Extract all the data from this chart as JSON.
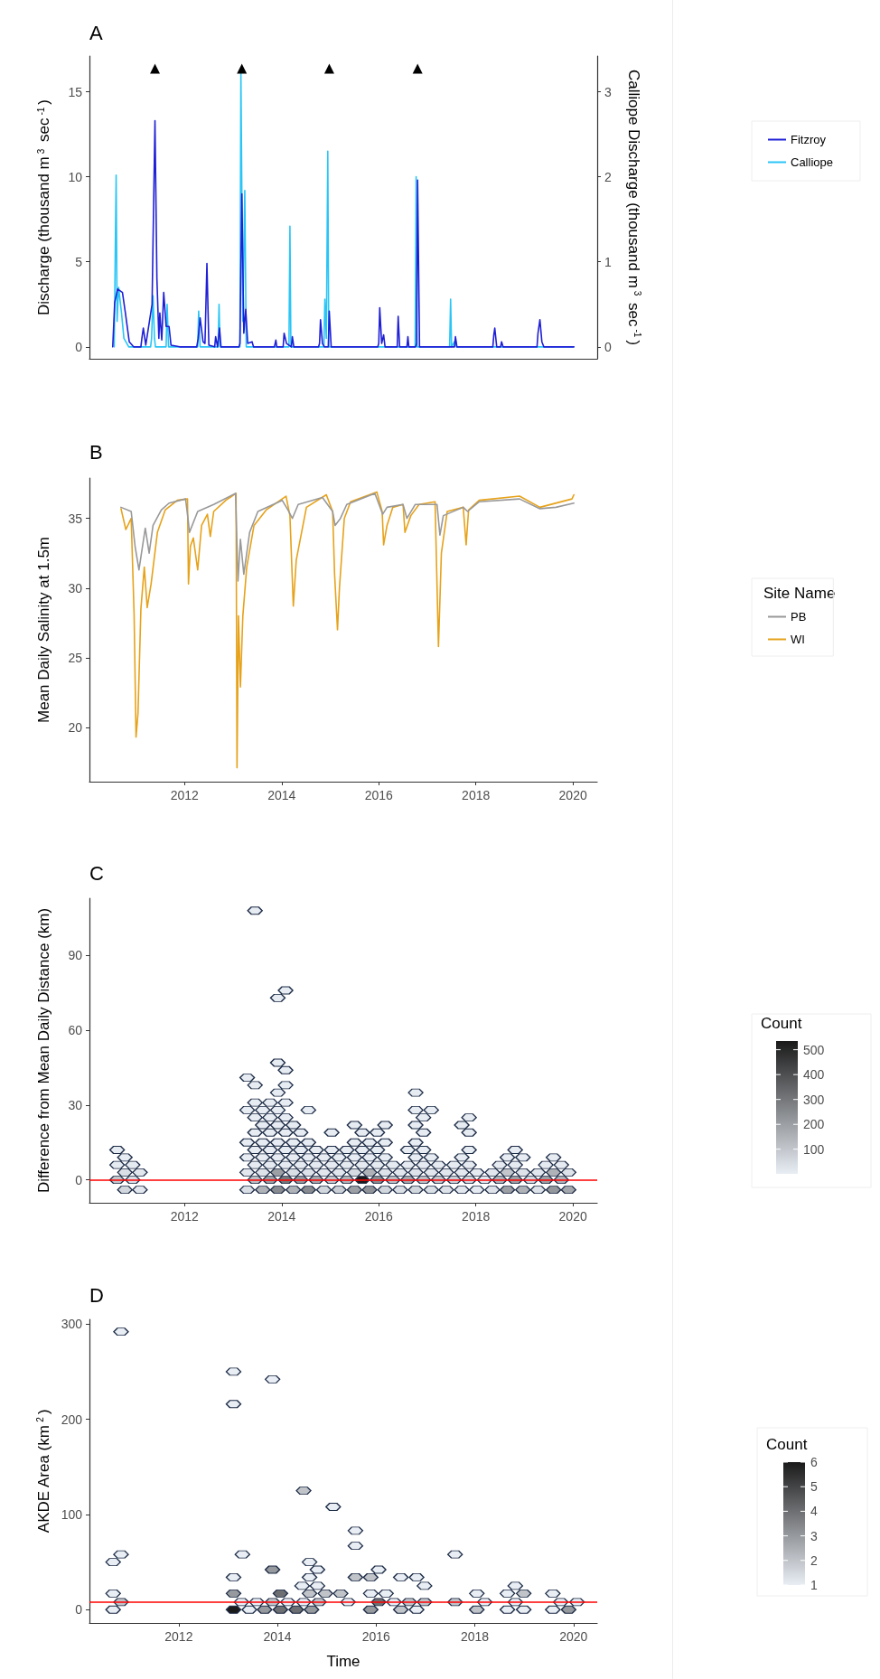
{
  "chart_data": [
    {
      "type": "line",
      "title": "A",
      "ylabel": "Discharge (thousand m$^{3}$ sec$^{-1}$)",
      "y2label": "Calliope Discharge (thousand m$^{3}$ sec$^{-1}$)",
      "legend": "right",
      "tick_labels": "y",
      "xlim": [
        2010.04,
        2020.5
      ],
      "ylim": [
        -0.7,
        17.1
      ],
      "yticks": [
        0,
        5,
        10,
        15
      ],
      "y2lim": [
        -0.14,
        3.42
      ],
      "y2ticks": [
        0,
        1,
        2,
        3
      ],
      "series": [
        {
          "name": "Fitzroy",
          "color": "#1f1fd6",
          "x": [
            2010.52,
            2010.56,
            2010.62,
            2010.72,
            2010.78,
            2010.86,
            2010.95,
            2011.1,
            2011.12,
            2011.15,
            2011.2,
            2011.33,
            2011.35,
            2011.39,
            2011.43,
            2011.47,
            2011.49,
            2011.53,
            2011.57,
            2011.62,
            2011.68,
            2011.72,
            2011.9,
            2012.25,
            2012.28,
            2012.32,
            2012.38,
            2012.42,
            2012.46,
            2012.5,
            2012.62,
            2012.64,
            2012.68,
            2012.72,
            2012.75,
            2013.12,
            2013.14,
            2013.18,
            2013.22,
            2013.26,
            2013.3,
            2013.39,
            2013.42,
            2013.85,
            2013.88,
            2013.9,
            2014.03,
            2014.05,
            2014.1,
            2014.2,
            2014.22,
            2014.25,
            2014.76,
            2014.78,
            2014.8,
            2014.84,
            2014.88,
            2014.96,
            2014.98,
            2015.02,
            2015.98,
            2016.0,
            2016.02,
            2016.06,
            2016.1,
            2016.13,
            2016.38,
            2016.4,
            2016.43,
            2016.58,
            2016.6,
            2016.62,
            2016.76,
            2016.78,
            2016.8,
            2016.84,
            2017.56,
            2017.58,
            2017.61,
            2018.35,
            2018.37,
            2018.39,
            2018.43,
            2018.51,
            2018.53,
            2018.56,
            2019.26,
            2019.28,
            2019.32,
            2019.36,
            2019.4,
            2020.02
          ],
          "values": [
            0,
            2.6,
            3.4,
            3.2,
            2.0,
            0.3,
            0,
            0,
            0.5,
            1.1,
            0.1,
            2.5,
            6.2,
            13.3,
            4,
            0.5,
            2.0,
            0.4,
            3.2,
            1.2,
            1.2,
            0.1,
            0,
            0,
            0.5,
            1.7,
            0.3,
            0.2,
            4.9,
            0.1,
            0,
            0.6,
            0,
            1.1,
            0,
            0,
            0.2,
            9.0,
            0.8,
            2.2,
            0.2,
            0.3,
            0,
            0,
            0.4,
            0,
            0,
            0.8,
            0.2,
            0,
            0.6,
            0,
            0,
            0.2,
            1.6,
            0.2,
            0,
            0,
            2.1,
            0,
            0,
            0.2,
            2.3,
            0.2,
            0.7,
            0,
            0,
            1.8,
            0,
            0,
            0.6,
            0,
            0,
            0.2,
            9.8,
            0,
            0,
            0.6,
            0,
            0,
            0.7,
            1.1,
            0,
            0,
            0.3,
            0,
            0,
            0.8,
            1.6,
            0.3,
            0,
            0
          ]
        },
        {
          "name": "Calliope",
          "color": "#29c5f6",
          "axis": "y2",
          "x": [
            2010.55,
            2010.59,
            2010.61,
            2010.64,
            2010.7,
            2010.75,
            2010.85,
            2011.3,
            2011.32,
            2011.35,
            2011.38,
            2011.4,
            2011.62,
            2011.64,
            2011.67,
            2012.27,
            2012.29,
            2012.32,
            2012.69,
            2012.71,
            2012.73,
            2013.14,
            2013.16,
            2013.2,
            2013.24,
            2013.27,
            2014.15,
            2014.17,
            2014.19,
            2014.87,
            2014.89,
            2014.92,
            2014.95,
            2014.97,
            2016.75,
            2016.77,
            2016.79,
            2017.46,
            2017.48,
            2017.5,
            2017.58,
            2017.6,
            2020.02
          ],
          "values": [
            0,
            2.02,
            0.3,
            0.7,
            0.4,
            0.1,
            0,
            0,
            0.1,
            0.6,
            0.1,
            0,
            0,
            0.5,
            0,
            0,
            0.42,
            0,
            0,
            0.5,
            0,
            0,
            3.24,
            0.3,
            1.84,
            0,
            0,
            1.42,
            0,
            0,
            0.56,
            0.1,
            2.3,
            0,
            0,
            2.0,
            0,
            0,
            0.56,
            0,
            0.08,
            0,
            0
          ]
        },
        {
          "type": "scatter",
          "marker": "triangle",
          "color": "#000000",
          "x": [
            2011.39,
            2013.18,
            2014.98,
            2016.8
          ],
          "values": [
            16.35,
            16.35,
            16.35,
            16.35
          ]
        }
      ]
    },
    {
      "type": "line",
      "title": "B",
      "ylabel": "Mean Daily Salinity at 1.5m",
      "legend": "right",
      "legend_title": "Site Name",
      "xlim": [
        2010.04,
        2020.5
      ],
      "xticks": [
        2012,
        2014,
        2016,
        2018,
        2020
      ],
      "ylim": [
        16.1,
        37.9
      ],
      "yticks": [
        20,
        25,
        30,
        35
      ],
      "series": [
        {
          "name": "PB",
          "color": "#999999",
          "x": [
            2010.69,
            2010.9,
            2010.98,
            2011.06,
            2011.19,
            2011.27,
            2011.35,
            2011.52,
            2011.68,
            2012.02,
            2012.07,
            2012.1,
            2012.27,
            2012.6,
            2013.05,
            2013.1,
            2013.15,
            2013.22,
            2013.34,
            2013.51,
            2014.01,
            2014.13,
            2014.22,
            2014.34,
            2014.84,
            2015.05,
            2015.1,
            2015.21,
            2015.34,
            2015.92,
            2016.08,
            2016.17,
            2016.5,
            2016.58,
            2016.75,
            2017.2,
            2017.26,
            2017.33,
            2017.74,
            2017.83,
            2018.07,
            2018.9,
            2019.32,
            2019.65,
            2020.02
          ],
          "values": [
            35.8,
            35.5,
            33,
            31.3,
            34.3,
            32.5,
            34.5,
            35.6,
            36.1,
            36.4,
            35,
            34,
            35.5,
            36,
            36.8,
            30.5,
            33.5,
            31,
            34,
            35.5,
            36.3,
            35.6,
            35,
            36,
            36.5,
            35.5,
            34.5,
            35,
            36,
            36.8,
            35.3,
            35.8,
            36,
            35,
            36,
            36,
            33.8,
            35.2,
            35.8,
            35.5,
            36.2,
            36.4,
            35.7,
            35.8,
            36.1
          ]
        },
        {
          "name": "WI",
          "color": "#e6a21a",
          "x": [
            2010.69,
            2010.79,
            2010.9,
            2010.96,
            2011.0,
            2011.04,
            2011.1,
            2011.17,
            2011.23,
            2011.31,
            2011.44,
            2011.6,
            2011.85,
            2012.06,
            2012.08,
            2012.12,
            2012.18,
            2012.27,
            2012.35,
            2012.47,
            2012.53,
            2012.6,
            2012.85,
            2013.06,
            2013.08,
            2013.11,
            2013.15,
            2013.2,
            2013.28,
            2013.43,
            2013.68,
            2014.09,
            2014.17,
            2014.24,
            2014.3,
            2014.51,
            2014.92,
            2015.05,
            2015.09,
            2015.15,
            2015.19,
            2015.29,
            2015.42,
            2015.96,
            2016.07,
            2016.1,
            2016.17,
            2016.29,
            2016.5,
            2016.54,
            2016.66,
            2016.83,
            2017.16,
            2017.23,
            2017.29,
            2017.41,
            2017.74,
            2017.8,
            2017.85,
            2018.07,
            2018.9,
            2019.32,
            2019.98,
            2020.02
          ],
          "values": [
            35.7,
            34.2,
            35,
            28.1,
            19.3,
            21,
            28.5,
            31.5,
            28.6,
            30.3,
            34,
            35.6,
            36.3,
            36.4,
            30.3,
            33,
            33.6,
            31.3,
            34.5,
            35.3,
            33.7,
            35.5,
            36.3,
            36.8,
            17.1,
            28,
            22.9,
            28,
            31.5,
            34.5,
            35.6,
            36.6,
            35.2,
            28.7,
            32,
            35.8,
            36.7,
            35.5,
            31,
            27,
            30,
            35,
            36.2,
            36.9,
            35.5,
            33.1,
            34.5,
            35.8,
            36,
            34,
            35.2,
            36,
            36.2,
            25.8,
            32.5,
            35.5,
            35.8,
            33.1,
            35.6,
            36.3,
            36.6,
            35.8,
            36.4,
            36.7
          ]
        }
      ]
    },
    {
      "type": "scatter",
      "title": "C",
      "ylabel": "Difference from Mean Daily Distance (km)",
      "clabel": "Count",
      "clim": [
        1,
        535
      ],
      "cticks": [
        100,
        200,
        300,
        400,
        500
      ],
      "xlim": [
        2010.04,
        2020.5
      ],
      "xticks": [
        2012,
        2014,
        2016,
        2018,
        2020
      ],
      "ylim": [
        -9.2,
        113
      ],
      "yticks": [
        0,
        30,
        60,
        90
      ],
      "ref_lines": [
        {
          "axis": "y",
          "value": 0,
          "color": "#ff0000"
        }
      ],
      "x": [
        2010.77,
        2011.08,
        2013.29,
        2013.61,
        2013.92,
        2014.24,
        2014.55,
        2014.87,
        2015.18,
        2015.5,
        2015.81,
        2016.13,
        2016.44,
        2016.76,
        2017.08,
        2017.39,
        2017.71,
        2018.02,
        2018.34,
        2018.65,
        2018.97,
        2019.28,
        2019.6,
        2019.91,
        2010.61,
        2010.93,
        2013.45,
        2013.76,
        2014.08,
        2014.39,
        2014.71,
        2015.03,
        2015.34,
        2015.66,
        2015.97,
        2016.29,
        2016.6,
        2016.92,
        2017.23,
        2017.55,
        2017.86,
        2018.18,
        2018.49,
        2018.81,
        2019.13,
        2019.44,
        2019.76,
        2010.77,
        2011.08,
        2013.29,
        2013.61,
        2013.92,
        2014.24,
        2014.55,
        2014.87,
        2015.18,
        2015.5,
        2015.81,
        2016.13,
        2016.44,
        2016.76,
        2017.08,
        2017.39,
        2017.71,
        2018.02,
        2018.34,
        2018.65,
        2018.97,
        2019.28,
        2019.6,
        2019.91,
        2010.61,
        2010.93,
        2013.45,
        2013.76,
        2014.08,
        2014.39,
        2014.71,
        2015.03,
        2015.34,
        2015.66,
        2015.97,
        2016.29,
        2016.6,
        2016.92,
        2017.23,
        2017.55,
        2017.86,
        2018.49,
        2018.81,
        2019.44,
        2019.76,
        2010.77,
        2013.29,
        2013.61,
        2013.92,
        2014.24,
        2014.55,
        2014.87,
        2015.18,
        2015.5,
        2015.81,
        2016.13,
        2016.76,
        2017.08,
        2017.71,
        2018.65,
        2018.97,
        2019.6,
        2010.61,
        2013.45,
        2013.76,
        2014.08,
        2014.39,
        2014.71,
        2015.03,
        2015.34,
        2015.66,
        2015.97,
        2016.6,
        2016.92,
        2017.86,
        2018.81,
        2013.29,
        2013.61,
        2013.92,
        2014.24,
        2014.55,
        2015.5,
        2015.81,
        2016.13,
        2016.76,
        2013.45,
        2013.76,
        2014.08,
        2014.39,
        2015.03,
        2015.66,
        2015.97,
        2016.92,
        2017.86,
        2013.61,
        2013.92,
        2014.24,
        2015.5,
        2016.13,
        2016.76,
        2017.71,
        2013.45,
        2013.76,
        2014.08,
        2016.92,
        2017.86,
        2013.29,
        2013.61,
        2013.92,
        2014.55,
        2016.76,
        2017.08,
        2013.45,
        2013.76,
        2014.08,
        2013.92,
        2016.76,
        2013.45,
        2014.08,
        2013.29,
        2014.08,
        2013.92,
        2013.92,
        2014.08,
        2013.45
      ],
      "values": [
        -4,
        -4,
        -4,
        -4,
        -4,
        -4,
        -4,
        -4,
        -4,
        -4,
        -4,
        -4,
        -4,
        -4,
        -4,
        -4,
        -4,
        -4,
        -4,
        -4,
        -4,
        -4,
        -4,
        -4,
        0,
        0,
        0,
        0,
        0,
        0,
        0,
        0,
        0,
        0,
        0,
        0,
        0,
        0,
        0,
        0,
        0,
        0,
        0,
        0,
        0,
        0,
        0,
        3,
        3,
        3,
        3,
        3,
        3,
        3,
        3,
        3,
        3,
        3,
        3,
        3,
        3,
        3,
        3,
        3,
        3,
        3,
        3,
        3,
        3,
        3,
        3,
        6,
        6,
        6,
        6,
        6,
        6,
        6,
        6,
        6,
        6,
        6,
        6,
        6,
        6,
        6,
        6,
        6,
        6,
        6,
        6,
        6,
        9,
        9,
        9,
        9,
        9,
        9,
        9,
        9,
        9,
        9,
        9,
        9,
        9,
        9,
        9,
        9,
        9,
        12,
        12,
        12,
        12,
        12,
        12,
        12,
        12,
        12,
        12,
        12,
        12,
        12,
        12,
        15,
        15,
        15,
        15,
        15,
        15,
        15,
        15,
        15,
        19,
        19,
        19,
        19,
        19,
        19,
        19,
        19,
        19,
        22,
        22,
        22,
        22,
        22,
        22,
        22,
        25,
        25,
        25,
        25,
        25,
        28,
        28,
        28,
        28,
        28,
        28,
        31,
        31,
        31,
        35,
        35,
        38,
        38,
        41,
        44,
        47,
        73,
        76,
        108
      ],
      "cvalues": [
        60,
        20,
        40,
        150,
        250,
        150,
        250,
        60,
        80,
        200,
        230,
        60,
        40,
        60,
        40,
        30,
        20,
        10,
        30,
        200,
        150,
        30,
        220,
        180,
        100,
        40,
        120,
        200,
        300,
        220,
        180,
        100,
        150,
        530,
        250,
        120,
        180,
        120,
        100,
        80,
        60,
        20,
        150,
        200,
        60,
        200,
        150,
        40,
        20,
        20,
        30,
        200,
        40,
        30,
        20,
        20,
        50,
        150,
        30,
        20,
        30,
        20,
        20,
        15,
        10,
        20,
        100,
        30,
        20,
        150,
        30,
        10,
        10,
        10,
        10,
        10,
        10,
        10,
        10,
        10,
        10,
        10,
        10,
        10,
        10,
        10,
        10,
        10,
        10,
        10,
        10,
        10,
        5,
        5,
        5,
        5,
        5,
        5,
        5,
        5,
        5,
        5,
        5,
        5,
        5,
        5,
        5,
        5,
        5,
        5,
        5,
        5,
        5,
        5,
        5,
        5,
        5,
        5,
        5,
        5,
        5,
        5,
        5,
        5,
        5,
        5,
        5,
        5,
        5,
        5,
        5,
        5,
        5,
        5,
        5,
        5,
        5,
        5,
        5,
        5,
        5,
        5,
        5,
        5,
        5,
        5,
        5,
        5,
        5,
        5,
        5,
        5,
        5,
        5,
        5,
        5,
        5,
        5,
        5,
        5,
        5,
        5,
        5,
        5,
        5,
        5,
        5,
        5,
        5,
        5,
        5,
        5
      ]
    },
    {
      "type": "scatter",
      "title": "D",
      "xlabel": "Time",
      "ylabel": "AKDE Area (km$^{2}$)",
      "clabel": "Count",
      "clim": [
        1,
        6
      ],
      "cticks": [
        1,
        2,
        3,
        4,
        5,
        6
      ],
      "xlim": [
        2010.19,
        2020.48
      ],
      "xticks": [
        2012,
        2014,
        2016,
        2018,
        2020
      ],
      "ylim": [
        -14,
        305
      ],
      "yticks": [
        0,
        100,
        200,
        300
      ],
      "ref_lines": [
        {
          "axis": "y",
          "value": 8,
          "color": "#ff0000"
        }
      ],
      "x": [
        2010.83,
        2010.67,
        2010.83,
        2010.67,
        2010.83,
        2010.67,
        2013.11,
        2013.11,
        2013.9,
        2013.29,
        2013.11,
        2013.11,
        2013.11,
        2013.27,
        2013.43,
        2013.58,
        2013.74,
        2013.9,
        2013.9,
        2014.06,
        2014.06,
        2014.21,
        2014.38,
        2014.53,
        2014.53,
        2014.69,
        2014.65,
        2014.5,
        2014.65,
        2014.65,
        2014.81,
        2014.84,
        2014.81,
        2014.97,
        2015.13,
        2015.28,
        2015.43,
        2015.58,
        2015.58,
        2015.58,
        2015.89,
        2015.89,
        2015.89,
        2016.05,
        2016.05,
        2016.2,
        2016.36,
        2016.5,
        2016.5,
        2016.67,
        2016.82,
        2016.82,
        2016.98,
        2016.98,
        2017.6,
        2017.6,
        2018.04,
        2018.04,
        2018.2,
        2018.66,
        2018.66,
        2018.82,
        2018.82,
        2018.99,
        2018.99,
        2019.58,
        2019.58,
        2019.74,
        2019.9,
        2020.07
      ],
      "values": [
        292,
        50,
        58,
        17,
        8,
        0,
        250,
        216,
        242,
        58,
        34,
        17,
        0,
        8,
        0,
        8,
        0,
        8,
        42,
        17,
        0,
        8,
        0,
        8,
        125,
        0,
        17,
        25,
        34,
        50,
        42,
        8,
        25,
        17,
        108,
        17,
        8,
        83,
        67,
        34,
        34,
        17,
        0,
        42,
        8,
        17,
        8,
        0,
        34,
        8,
        0,
        34,
        8,
        25,
        58,
        8,
        17,
        0,
        8,
        17,
        0,
        25,
        8,
        17,
        0,
        17,
        0,
        8,
        0,
        8
      ],
      "cvalues": [
        1,
        1,
        1,
        1,
        2,
        1,
        1,
        1,
        1,
        1,
        1,
        3,
        6,
        1,
        1,
        1,
        3,
        2,
        3,
        4,
        4,
        1,
        4,
        1,
        2,
        3,
        2,
        1,
        1,
        1,
        1,
        2,
        1,
        2,
        1,
        2,
        1,
        1,
        1,
        2,
        2,
        1,
        3,
        1,
        4,
        1,
        1,
        2,
        1,
        2,
        1,
        1,
        2,
        1,
        1,
        2,
        1,
        2,
        1,
        1,
        1,
        1,
        1,
        2,
        1,
        1,
        1,
        1,
        3,
        1
      ]
    }
  ]
}
